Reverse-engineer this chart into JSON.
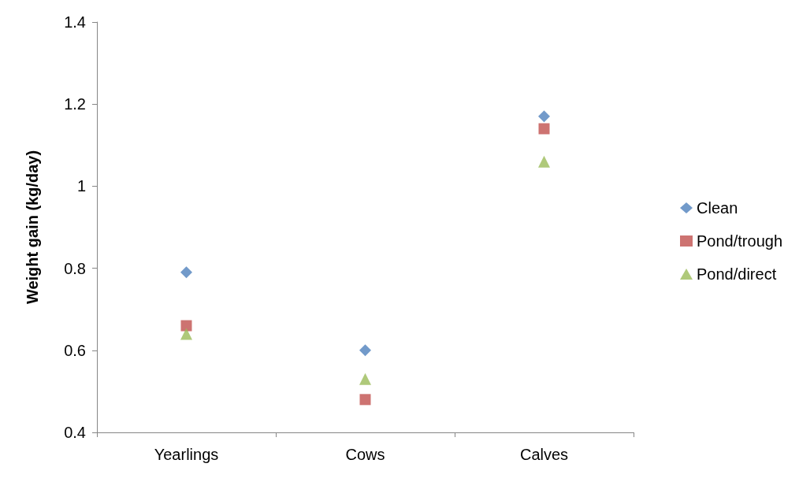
{
  "chart_data": {
    "type": "scatter",
    "ylabel": "Weight gain (kg/day)",
    "categories": [
      "Yearlings",
      "Cows",
      "Calves"
    ],
    "series": [
      {
        "name": "Clean",
        "color": "#4f81bd",
        "marker": "diamond",
        "values": [
          0.79,
          0.6,
          1.17
        ]
      },
      {
        "name": "Pond/trough",
        "color": "#c0504d",
        "marker": "square",
        "values": [
          0.66,
          0.48,
          1.14
        ]
      },
      {
        "name": "Pond/direct",
        "color": "#9bbb59",
        "marker": "triangle",
        "values": [
          0.64,
          0.53,
          1.06
        ]
      }
    ],
    "ylim": [
      0.4,
      1.4
    ],
    "yticks": [
      0.4,
      0.6,
      0.8,
      1,
      1.2,
      1.4
    ],
    "grid": false,
    "legend": "right"
  }
}
